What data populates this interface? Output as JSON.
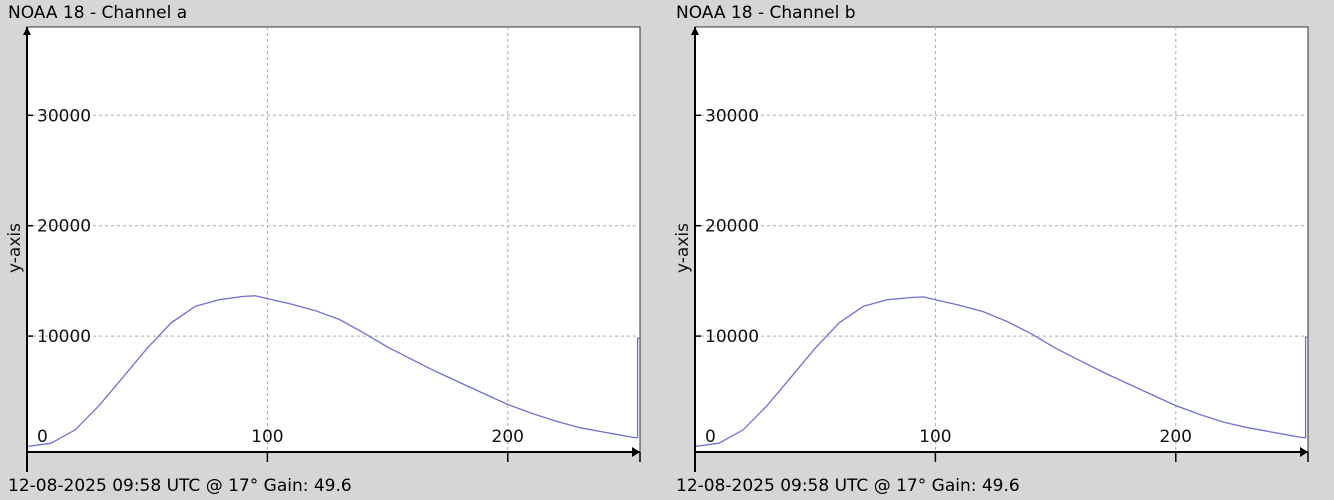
{
  "colors": {
    "background": "#d6d6d6",
    "plot_area": "#ffffff",
    "series_line": "#6f6fd6",
    "grid": "#aaaaaa",
    "axis": "#000000"
  },
  "chart_data": [
    {
      "type": "line",
      "title": "NOAA 18 - Channel a",
      "footer": "12-08-2025 09:58 UTC @ 17° Gain: 49.6",
      "xlabel": "",
      "ylabel": "y-axis",
      "xlim": [
        0,
        255
      ],
      "ylim": [
        -500,
        38000
      ],
      "x_ticks": [
        0,
        100,
        200
      ],
      "y_ticks": [
        10000,
        20000,
        30000
      ],
      "grid": true,
      "x": [
        0,
        10,
        20,
        30,
        40,
        50,
        60,
        70,
        80,
        90,
        95,
        100,
        110,
        120,
        130,
        140,
        150,
        160,
        170,
        180,
        190,
        200,
        210,
        220,
        230,
        240,
        245,
        250,
        253,
        254,
        254,
        255
      ],
      "y": [
        0,
        300,
        1500,
        3700,
        6300,
        8900,
        11200,
        12700,
        13300,
        13600,
        13650,
        13400,
        12900,
        12300,
        11500,
        10300,
        9000,
        7900,
        6800,
        5800,
        4800,
        3800,
        3000,
        2300,
        1700,
        1300,
        1100,
        900,
        800,
        800,
        9800,
        9800
      ],
      "series": [
        {
          "values_key": "y"
        }
      ]
    },
    {
      "type": "line",
      "title": "NOAA 18 - Channel b",
      "footer": "12-08-2025 09:58 UTC @ 17° Gain: 49.6",
      "xlabel": "",
      "ylabel": "y-axis",
      "xlim": [
        0,
        255
      ],
      "ylim": [
        -500,
        38000
      ],
      "x_ticks": [
        0,
        100,
        200
      ],
      "y_ticks": [
        10000,
        20000,
        30000
      ],
      "grid": true,
      "x": [
        0,
        10,
        20,
        30,
        40,
        50,
        60,
        70,
        80,
        90,
        95,
        100,
        110,
        120,
        130,
        140,
        150,
        160,
        170,
        180,
        190,
        200,
        210,
        220,
        230,
        240,
        245,
        250,
        253,
        254,
        254,
        255
      ],
      "y": [
        0,
        300,
        1500,
        3700,
        6300,
        8900,
        11200,
        12700,
        13300,
        13500,
        13550,
        13300,
        12800,
        12200,
        11300,
        10200,
        8900,
        7800,
        6700,
        5700,
        4700,
        3700,
        2900,
        2200,
        1700,
        1300,
        1100,
        900,
        800,
        800,
        9900,
        9900
      ],
      "series": [
        {
          "values_key": "y"
        }
      ]
    }
  ]
}
